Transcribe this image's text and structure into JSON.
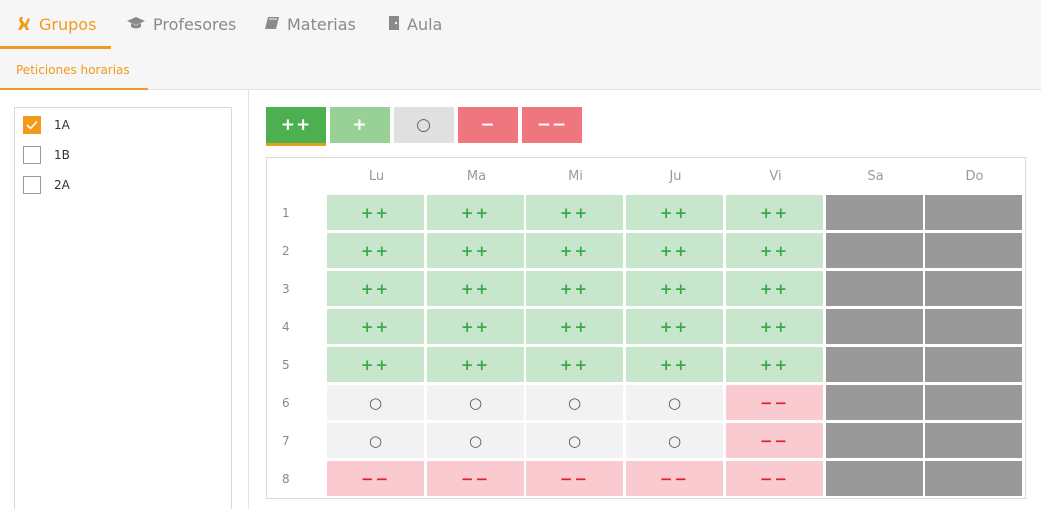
{
  "tabs": [
    {
      "label": "Grupos",
      "icon": "groups-icon",
      "active": true
    },
    {
      "label": "Profesores",
      "icon": "graduation-cap-icon",
      "active": false
    },
    {
      "label": "Materias",
      "icon": "book-icon",
      "active": false
    },
    {
      "label": "Aula",
      "icon": "door-icon",
      "active": false
    }
  ],
  "subtab": {
    "label": "Peticiones horarias"
  },
  "groups": [
    {
      "label": "1A",
      "checked": true
    },
    {
      "label": "1B",
      "checked": false
    },
    {
      "label": "2A",
      "checked": false
    }
  ],
  "preferences": [
    {
      "label": "++",
      "color": "#4caf50",
      "active": true
    },
    {
      "label": "+",
      "color": "#98d195",
      "active": false
    },
    {
      "label": "○",
      "color": "#e0e0e0",
      "active": false
    },
    {
      "label": "−",
      "color": "#ef767e",
      "active": false
    },
    {
      "label": "−−",
      "color": "#ef767e",
      "active": false
    }
  ],
  "days": [
    "Lu",
    "Ma",
    "Mi",
    "Ju",
    "Vi",
    "Sa",
    "Do"
  ],
  "periods": [
    "1",
    "2",
    "3",
    "4",
    "5",
    "6",
    "7",
    "8"
  ],
  "cell_symbols": {
    "pp": "++",
    "o": "○",
    "mm": "−−",
    "na": ""
  },
  "schedule": [
    [
      "pp",
      "pp",
      "pp",
      "pp",
      "pp",
      "na",
      "na"
    ],
    [
      "pp",
      "pp",
      "pp",
      "pp",
      "pp",
      "na",
      "na"
    ],
    [
      "pp",
      "pp",
      "pp",
      "pp",
      "pp",
      "na",
      "na"
    ],
    [
      "pp",
      "pp",
      "pp",
      "pp",
      "pp",
      "na",
      "na"
    ],
    [
      "pp",
      "pp",
      "pp",
      "pp",
      "pp",
      "na",
      "na"
    ],
    [
      "o",
      "o",
      "o",
      "o",
      "mm",
      "na",
      "na"
    ],
    [
      "o",
      "o",
      "o",
      "o",
      "mm",
      "na",
      "na"
    ],
    [
      "mm",
      "mm",
      "mm",
      "mm",
      "mm",
      "na",
      "na"
    ]
  ],
  "colors": {
    "accent": "#f39a1c",
    "like_strong": "#3aaa48",
    "dislike_strong": "#e3202f",
    "unavailable": "#999999"
  }
}
